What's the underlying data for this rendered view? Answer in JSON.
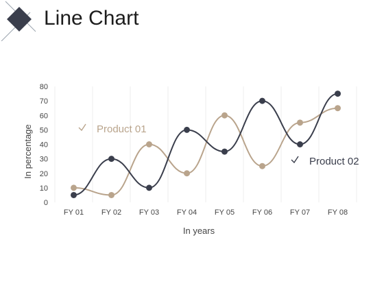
{
  "header": {
    "title": "Line Chart",
    "icon": "diamond-icon"
  },
  "colors": {
    "product01": "#B9A48C",
    "product02": "#3A3E4C",
    "grid": "#ECECEC"
  },
  "chart_data": {
    "type": "line",
    "title": "",
    "xlabel": "In years",
    "ylabel": "In percentage",
    "categories": [
      "FY 01",
      "FY 02",
      "FY 03",
      "FY 04",
      "FY 05",
      "FY 06",
      "FY 07",
      "FY 08"
    ],
    "ylim": [
      0,
      80
    ],
    "yticks": [
      0,
      10,
      20,
      30,
      40,
      50,
      60,
      70,
      80
    ],
    "series": [
      {
        "name": "Product 01",
        "values": [
          10,
          5,
          40,
          20,
          60,
          25,
          55,
          65
        ]
      },
      {
        "name": "Product 02",
        "values": [
          5,
          30,
          10,
          50,
          35,
          70,
          40,
          75
        ]
      }
    ],
    "grid": "vertical",
    "smooth": true,
    "legend_placement": "inline"
  }
}
